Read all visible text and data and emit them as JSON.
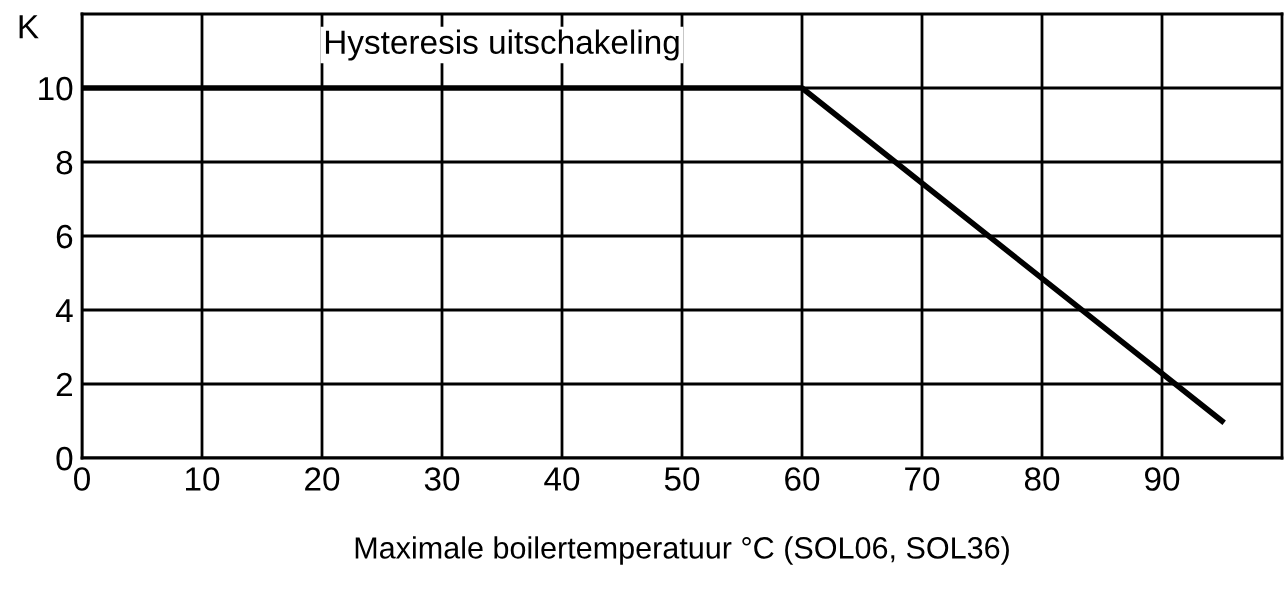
{
  "chart_data": {
    "type": "line",
    "ylabel": "K",
    "xlabel": "Maximale boilertemperatuur °C (SOL06, SOL36)",
    "annotations": [
      "Hysteresis uitschakeling"
    ],
    "x": [
      0,
      60,
      95
    ],
    "series": [
      {
        "color": "#000000",
        "values": [
          10,
          10,
          1
        ]
      }
    ],
    "xlim": [
      0,
      100
    ],
    "xticks": [
      0,
      10,
      20,
      30,
      40,
      50,
      60,
      70,
      80,
      90
    ],
    "ylim": [
      0,
      12
    ],
    "yticks": [
      0,
      2,
      4,
      6,
      8,
      10
    ],
    "grid": true,
    "marker": "none",
    "line_style": "solid",
    "legend": false
  }
}
